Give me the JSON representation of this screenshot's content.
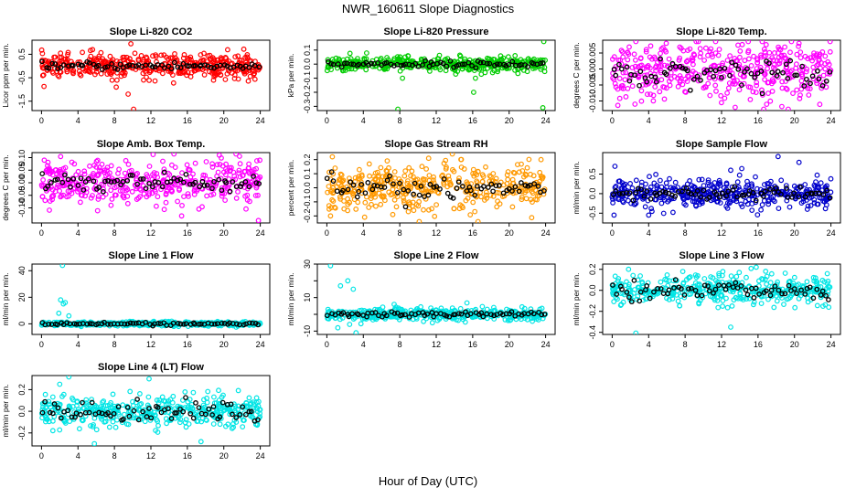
{
  "title": "NWR_160611  Slope Diagnostics",
  "xlabel": "Hour of Day (UTC)",
  "chart_data": [
    {
      "type": "scatter",
      "title": "Slope Li-820 CO2",
      "ylabel": "Licor ppm per min.",
      "color": "#ff0000",
      "xlim": [
        0,
        24
      ],
      "ylim": [
        -1.9,
        1.1
      ],
      "yticks": [
        -1.5,
        -0.5,
        0.5
      ],
      "yticklabels": [
        "-1.5",
        "-0.5",
        "0.5"
      ],
      "center": 0.0,
      "spread": 0.25,
      "avg_spread": 0.08,
      "outliers": [
        [
          8.2,
          -0.9
        ],
        [
          9.5,
          -1.2
        ],
        [
          10.1,
          -1.85
        ],
        [
          9.8,
          0.95
        ],
        [
          5.6,
          0.7
        ],
        [
          11.2,
          -0.6
        ]
      ],
      "x": [
        0,
        4,
        8,
        12,
        16,
        20,
        24
      ],
      "xticklabels": [
        "0",
        "4",
        "8",
        "12",
        "16",
        "20",
        "24"
      ]
    },
    {
      "type": "scatter",
      "title": "Slope Li-820 Pressure",
      "ylabel": "kPa per min.",
      "color": "#00cc00",
      "xlim": [
        0,
        24
      ],
      "ylim": [
        -0.33,
        0.17
      ],
      "yticks": [
        -0.3,
        -0.2,
        -0.1,
        0.0,
        0.1
      ],
      "yticklabels": [
        "-0.3",
        "-0.2",
        "-0.1",
        "0.0",
        "0.1"
      ],
      "center": 0.0,
      "spread": 0.025,
      "avg_spread": 0.01,
      "outliers": [
        [
          7.8,
          -0.32
        ],
        [
          16.1,
          -0.2
        ],
        [
          16.3,
          -0.1
        ],
        [
          23.8,
          0.16
        ],
        [
          23.7,
          -0.31
        ],
        [
          8.3,
          -0.1
        ]
      ],
      "x": [
        0,
        4,
        8,
        12,
        16,
        20,
        24
      ],
      "xticklabels": [
        "0",
        "4",
        "8",
        "12",
        "16",
        "20",
        "24"
      ]
    },
    {
      "type": "scatter",
      "title": "Slope Li-820 Temp.",
      "ylabel": "degrees C per min.",
      "color": "#ff00ff",
      "xlim": [
        0,
        24
      ],
      "ylim": [
        -0.013,
        0.009
      ],
      "yticks": [
        -0.01,
        -0.005,
        0.0,
        0.005
      ],
      "yticklabels": [
        "-0.010",
        "-0.005",
        "0.000",
        "0.005"
      ],
      "center": -0.001,
      "spread": 0.0045,
      "avg_spread": 0.002,
      "outliers": [
        [
          2.5,
          -0.011
        ],
        [
          20.5,
          0.008
        ],
        [
          13.5,
          -0.012
        ]
      ],
      "x": [
        0,
        4,
        8,
        12,
        16,
        20,
        24
      ],
      "xticklabels": [
        "0",
        "4",
        "8",
        "12",
        "16",
        "20",
        "24"
      ]
    },
    {
      "type": "scatter",
      "title": "Slope Amb. Box Temp.",
      "ylabel": "degrees C per min.",
      "color": "#ff00ff",
      "xlim": [
        0,
        24
      ],
      "ylim": [
        -0.16,
        0.12
      ],
      "yticks": [
        -0.1,
        -0.05,
        0.0,
        0.05,
        0.1
      ],
      "yticklabels": [
        "-0.10",
        "-0.05",
        "0.00",
        "0.05",
        "0.10"
      ],
      "center": 0.0,
      "spread": 0.045,
      "avg_spread": 0.02,
      "outliers": [
        [
          23.8,
          -0.15
        ],
        [
          0.3,
          0.09
        ],
        [
          19.5,
          0.11
        ]
      ],
      "x": [
        0,
        4,
        8,
        12,
        16,
        20,
        24
      ],
      "xticklabels": [
        "0",
        "4",
        "8",
        "12",
        "16",
        "20",
        "24"
      ]
    },
    {
      "type": "scatter",
      "title": "Slope Gas Stream RH",
      "ylabel": "percent per min.",
      "color": "#ff9900",
      "xlim": [
        0,
        24
      ],
      "ylim": [
        -0.25,
        0.25
      ],
      "yticks": [
        -0.2,
        -0.1,
        0.0,
        0.1,
        0.2
      ],
      "yticklabels": [
        "-0.2",
        "-0.1",
        "0.0",
        "0.1",
        "0.2"
      ],
      "center": 0.0,
      "spread": 0.08,
      "avg_spread": 0.04,
      "outliers": [
        [
          0.6,
          0.22
        ],
        [
          0.4,
          -0.2
        ],
        [
          23.5,
          0.2
        ]
      ],
      "x": [
        0,
        4,
        8,
        12,
        16,
        20,
        24
      ],
      "xticklabels": [
        "0",
        "4",
        "8",
        "12",
        "16",
        "20",
        "24"
      ]
    },
    {
      "type": "scatter",
      "title": "Slope Sample Flow",
      "ylabel": "ml/min per min.",
      "color": "#0000cc",
      "xlim": [
        0,
        24
      ],
      "ylim": [
        -0.75,
        1.05
      ],
      "yticks": [
        -0.5,
        0.0,
        0.5
      ],
      "yticklabels": [
        "-0.5",
        "0.0",
        "0.5"
      ],
      "center": 0.0,
      "spread": 0.18,
      "avg_spread": 0.08,
      "outliers": [
        [
          0.3,
          0.7
        ],
        [
          0.2,
          -0.55
        ],
        [
          13.0,
          0.6
        ],
        [
          18.2,
          0.95
        ],
        [
          20.5,
          0.8
        ],
        [
          4.0,
          -0.55
        ]
      ],
      "x": [
        0,
        4,
        8,
        12,
        16,
        20,
        24
      ],
      "xticklabels": [
        "0",
        "4",
        "8",
        "12",
        "16",
        "20",
        "24"
      ]
    },
    {
      "type": "scatter",
      "title": "Slope Line 1 Flow",
      "ylabel": "ml/min per min.",
      "color": "#00e5e5",
      "xlim": [
        0,
        24
      ],
      "ylim": [
        -8,
        45
      ],
      "yticks": [
        0,
        20,
        40
      ],
      "yticklabels": [
        "0",
        "20",
        "40"
      ],
      "center": 0.0,
      "spread": 0.8,
      "avg_spread": 0.5,
      "outliers": [
        [
          2.3,
          44
        ],
        [
          2.1,
          18
        ],
        [
          2.4,
          15
        ],
        [
          2.6,
          16
        ],
        [
          1.9,
          8
        ],
        [
          3.0,
          6
        ]
      ],
      "x": [
        0,
        4,
        8,
        12,
        16,
        20,
        24
      ],
      "xticklabels": [
        "0",
        "4",
        "8",
        "12",
        "16",
        "20",
        "24"
      ]
    },
    {
      "type": "scatter",
      "title": "Slope Line 2 Flow",
      "ylabel": "ml/min per min.",
      "color": "#00e5e5",
      "xlim": [
        0,
        24
      ],
      "ylim": [
        -12,
        30
      ],
      "yticks": [
        -10,
        0,
        10,
        20,
        30
      ],
      "yticklabels": [
        "-10",
        "",
        "10",
        "",
        "30"
      ],
      "center": 0.0,
      "spread": 1.8,
      "avg_spread": 1.0,
      "outliers": [
        [
          0.4,
          29
        ],
        [
          1.5,
          17
        ],
        [
          1.2,
          -8
        ],
        [
          2.3,
          20
        ],
        [
          2.9,
          15
        ],
        [
          3.2,
          -11
        ],
        [
          2.5,
          -6
        ],
        [
          7.6,
          3
        ]
      ],
      "x": [
        0,
        4,
        8,
        12,
        16,
        20,
        24
      ],
      "xticklabels": [
        "0",
        "4",
        "8",
        "12",
        "16",
        "20",
        "24"
      ]
    },
    {
      "type": "scatter",
      "title": "Slope Line 3 Flow",
      "ylabel": "ml/min per min.",
      "color": "#00e5e5",
      "xlim": [
        0,
        24
      ],
      "ylim": [
        -0.42,
        0.25
      ],
      "yticks": [
        -0.4,
        -0.2,
        0.0,
        0.2
      ],
      "yticklabels": [
        "-0.4",
        "-0.2",
        "0.0",
        "0.2"
      ],
      "center": 0.0,
      "spread": 0.07,
      "avg_spread": 0.04,
      "outliers": [
        [
          2.6,
          -0.41
        ],
        [
          13.0,
          -0.35
        ],
        [
          1.8,
          0.2
        ],
        [
          15.8,
          0.22
        ]
      ],
      "x": [
        0,
        4,
        8,
        12,
        16,
        20,
        24
      ],
      "xticklabels": [
        "0",
        "4",
        "8",
        "12",
        "16",
        "20",
        "24"
      ]
    },
    {
      "type": "scatter",
      "title": "Slope Line 4 (LT) Flow",
      "ylabel": "ml/min per min.",
      "color": "#00e5e5",
      "xlim": [
        0,
        24
      ],
      "ylim": [
        -0.32,
        0.33
      ],
      "yticks": [
        -0.2,
        0.0,
        0.2
      ],
      "yticklabels": [
        "-0.2",
        "0.0",
        "0.2"
      ],
      "center": 0.0,
      "spread": 0.07,
      "avg_spread": 0.045,
      "outliers": [
        [
          3.0,
          0.32
        ],
        [
          2.0,
          0.25
        ],
        [
          5.8,
          -0.3
        ],
        [
          11.8,
          0.3
        ],
        [
          17.5,
          -0.28
        ]
      ],
      "x": [
        0,
        4,
        8,
        12,
        16,
        20,
        24
      ],
      "xticklabels": [
        "0",
        "4",
        "8",
        "12",
        "16",
        "20",
        "24"
      ]
    }
  ]
}
